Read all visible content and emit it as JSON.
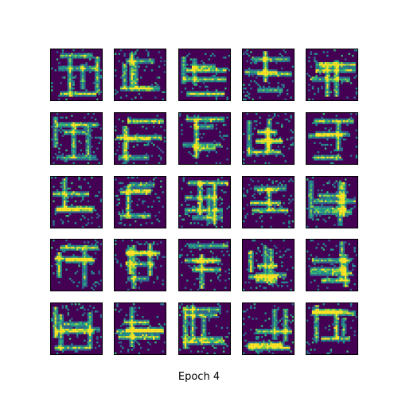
{
  "figure": {
    "caption": "Epoch 4",
    "rows": 5,
    "cols": 5,
    "background_color": "#ffffff",
    "tile_background_color": "#440154",
    "palette": [
      "#440154",
      "#31688e",
      "#21918c",
      "#35b779",
      "#90d743",
      "#fde725"
    ]
  }
}
